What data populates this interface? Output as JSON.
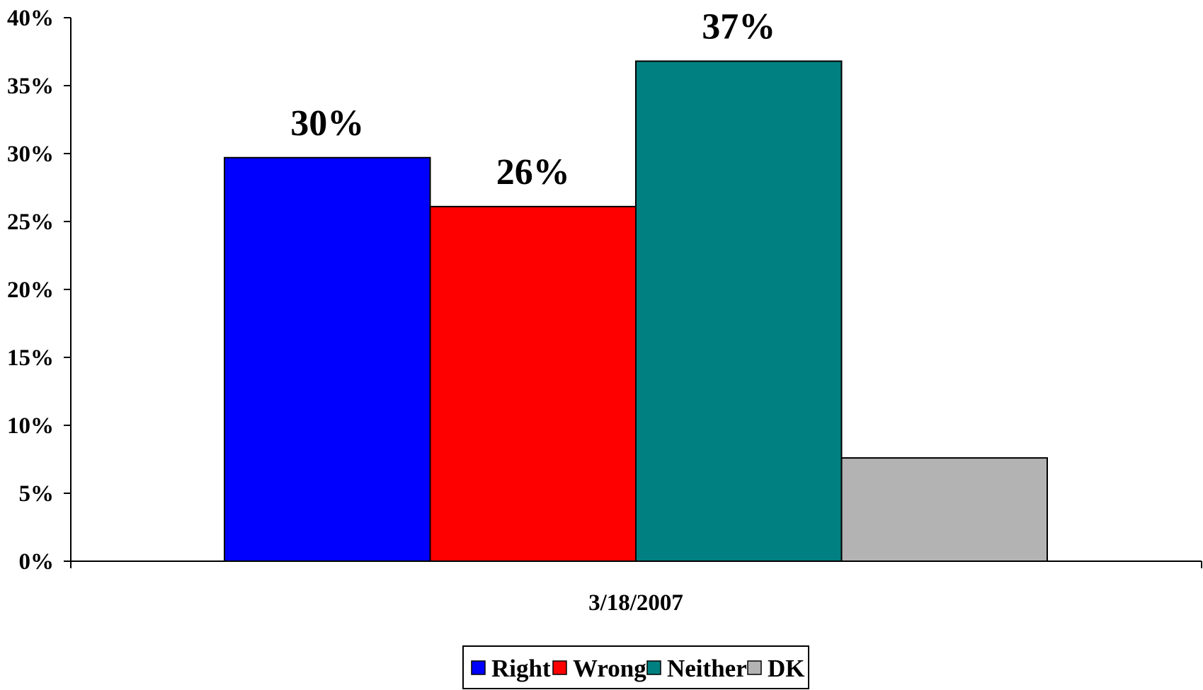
{
  "chart_data": {
    "type": "bar",
    "categories": [
      "3/18/2007"
    ],
    "series": [
      {
        "name": "Right",
        "values": [
          29.7
        ],
        "label": "30%",
        "color": "#0000FF"
      },
      {
        "name": "Wrong",
        "values": [
          26.1
        ],
        "label": "26%",
        "color": "#FF0000"
      },
      {
        "name": "Neither",
        "values": [
          36.8
        ],
        "label": "37%",
        "color": "#008080"
      },
      {
        "name": "DK",
        "values": [
          7.6
        ],
        "label": "",
        "color": "#B3B3B3"
      }
    ],
    "title": "",
    "xlabel": "",
    "ylabel": "",
    "ylim": [
      0,
      40
    ],
    "yticks": [
      "0%",
      "5%",
      "10%",
      "15%",
      "20%",
      "25%",
      "30%",
      "35%",
      "40%"
    ],
    "grid": false,
    "legend_position": "bottom"
  }
}
